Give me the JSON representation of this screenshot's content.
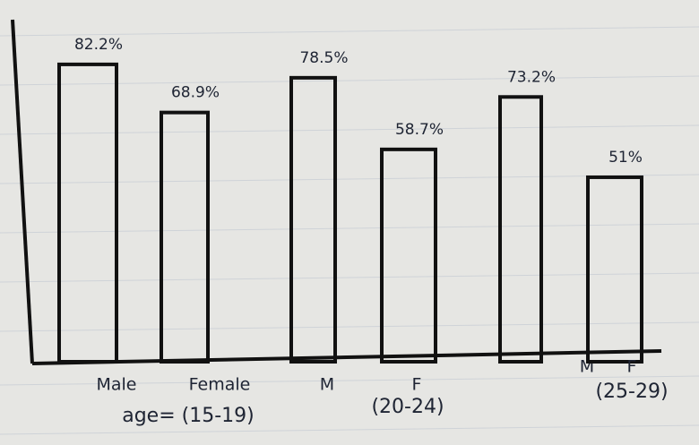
{
  "chart_data": {
    "type": "bar",
    "categories": [
      "Male",
      "Female",
      "M",
      "F",
      "M",
      "F"
    ],
    "values": [
      82.2,
      68.9,
      78.5,
      58.7,
      73.2,
      51
    ],
    "value_labels": [
      "82.2%",
      "68.9%",
      "78.5%",
      "58.7%",
      "73.2%",
      "51%"
    ],
    "group_labels": [
      "age= (15-19)",
      "(20-24)",
      "(25-29)"
    ],
    "ylim": [
      0,
      100
    ],
    "color": "#111111"
  }
}
